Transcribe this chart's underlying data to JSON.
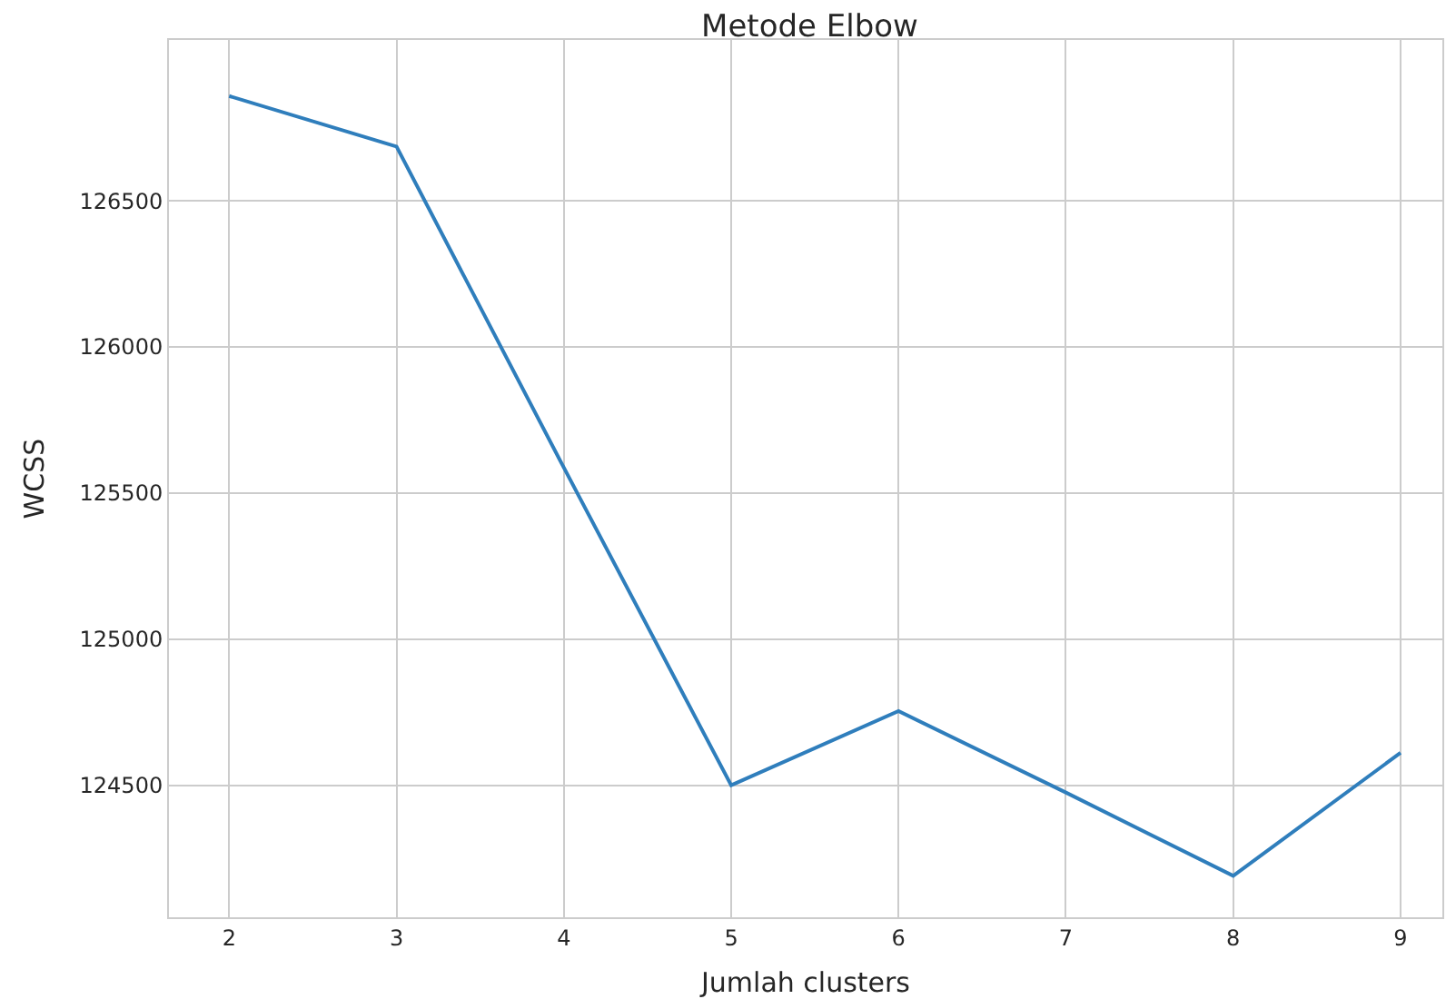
{
  "chart_data": {
    "type": "line",
    "title": "Metode Elbow",
    "xlabel": "Jumlah clusters",
    "ylabel": "WCSS",
    "x": [
      2,
      3,
      4,
      5,
      6,
      7,
      8,
      9
    ],
    "series": [
      {
        "color": "#2f7ebc",
        "values": [
          126859,
          126686,
          125587,
          124500,
          124754,
          124475,
          124190,
          124611
        ]
      }
    ],
    "xlim": [
      1.64,
      9.25
    ],
    "xticks": [
      2,
      3,
      4,
      5,
      6,
      7,
      8,
      9
    ],
    "ylim": [
      124048,
      127051
    ],
    "yticks": [
      124500,
      125000,
      125500,
      126000,
      126500
    ],
    "grid": true,
    "marker": "none",
    "line_style": "solid"
  }
}
